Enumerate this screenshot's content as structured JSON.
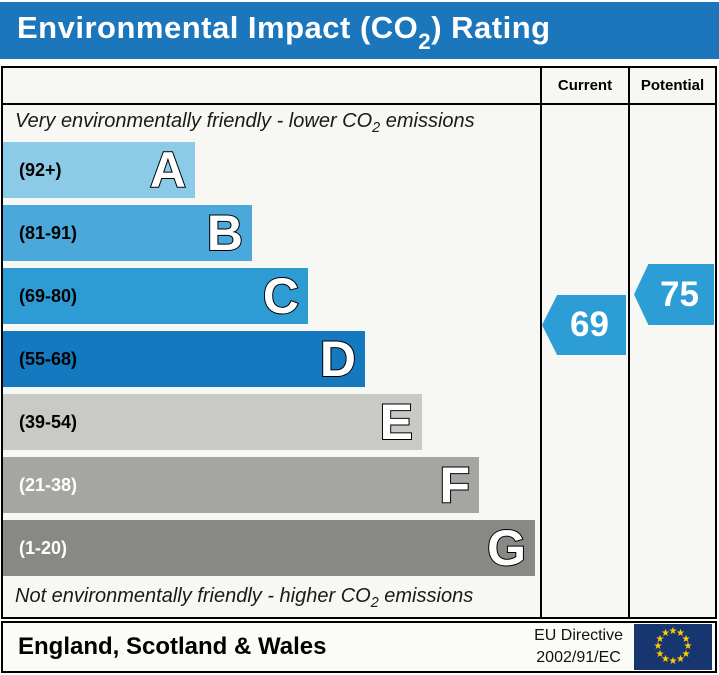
{
  "title": {
    "prefix": "Environmental Impact (CO",
    "sub": "2",
    "suffix": ") Rating"
  },
  "table_header": {
    "current": "Current",
    "potential": "Potential"
  },
  "notes": {
    "top": {
      "prefix": "Very environmentally friendly - lower CO",
      "sub": "2",
      "suffix": " emissions"
    },
    "bottom": {
      "prefix": "Not environmentally friendly - higher CO",
      "sub": "2",
      "suffix": " emissions"
    }
  },
  "footer": {
    "region": "England, Scotland & Wales",
    "directive_line1": "EU Directive",
    "directive_line2": "2002/91/EC",
    "flag": {
      "background": "#17356f",
      "star_color": "#ffcc00",
      "star_count": 12
    }
  },
  "colors": {
    "title_bar": "#1b76bc",
    "arrow": "#2d9dd6",
    "panel_bg": "#f7f7f3"
  },
  "chart_data": {
    "type": "bar",
    "orientation": "horizontal",
    "title": "Environmental Impact (CO2) Rating",
    "categories": [
      "A",
      "B",
      "C",
      "D",
      "E",
      "F",
      "G"
    ],
    "bands": [
      {
        "letter": "A",
        "range_label": "(92+)",
        "min": 92,
        "max": 100,
        "color": "#8ccbe8",
        "text_color": "#000000"
      },
      {
        "letter": "B",
        "range_label": "(81-91)",
        "min": 81,
        "max": 91,
        "color": "#4aa9da",
        "text_color": "#000000"
      },
      {
        "letter": "C",
        "range_label": "(69-80)",
        "min": 69,
        "max": 80,
        "color": "#2d9cd4",
        "text_color": "#000000"
      },
      {
        "letter": "D",
        "range_label": "(55-68)",
        "min": 55,
        "max": 68,
        "color": "#1579bf",
        "text_color": "#000000"
      },
      {
        "letter": "E",
        "range_label": "(39-54)",
        "min": 39,
        "max": 54,
        "color": "#c9c9c6",
        "text_color": "#000000"
      },
      {
        "letter": "F",
        "range_label": "(21-38)",
        "min": 21,
        "max": 38,
        "color": "#a5a5a2",
        "text_color": "#ffffff"
      },
      {
        "letter": "G",
        "range_label": "(1-20)",
        "min": 1,
        "max": 20,
        "color": "#888885",
        "text_color": "#ffffff"
      }
    ],
    "current": {
      "label": "Current",
      "value": 69,
      "band": "C"
    },
    "potential": {
      "label": "Potential",
      "value": 75,
      "band": "C"
    }
  }
}
